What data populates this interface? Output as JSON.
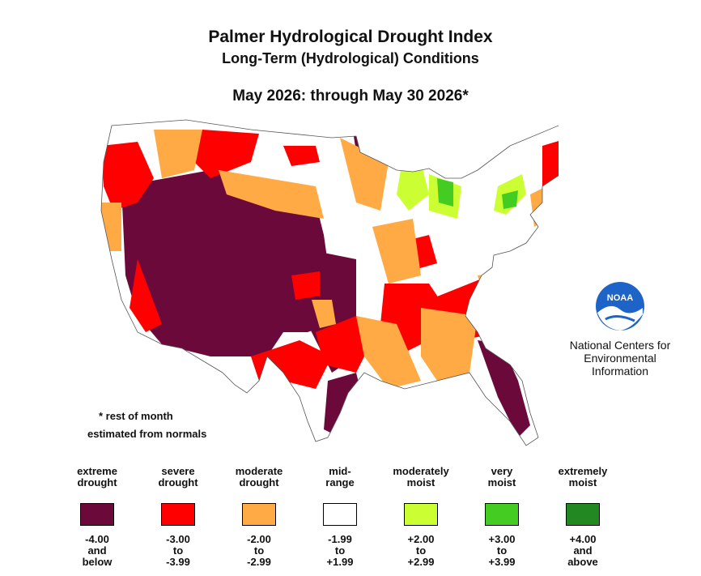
{
  "title": "Palmer Hydrological Drought Index",
  "subtitle": "Long-Term (Hydrological) Conditions",
  "period": "May 2026: through May 30 2026*",
  "footnote_line1": "* rest of month",
  "footnote_line2": "estimated from normals",
  "org": {
    "logo_text": "NOAA",
    "line1": "National Centers for",
    "line2": "Environmental",
    "line3": "Information"
  },
  "legend": [
    {
      "label": "extreme\ndrought",
      "range": "-4.00\nand\nbelow",
      "color": "#6b0a3a"
    },
    {
      "label": "severe\ndrought",
      "range": "-3.00\nto\n-3.99",
      "color": "#ff0000"
    },
    {
      "label": "moderate\ndrought",
      "range": "-2.00\nto\n-2.99",
      "color": "#ffaa44"
    },
    {
      "label": "mid-\nrange",
      "range": "-1.99\nto\n+1.99",
      "color": "#ffffff"
    },
    {
      "label": "moderately\nmoist",
      "range": "+2.00\nto\n+2.99",
      "color": "#ccff33"
    },
    {
      "label": "very\nmoist",
      "range": "+3.00\nto\n+3.99",
      "color": "#44cc22"
    },
    {
      "label": "extremely\nmoist",
      "range": "+4.00\nand\nabove",
      "color": "#228822"
    }
  ]
}
